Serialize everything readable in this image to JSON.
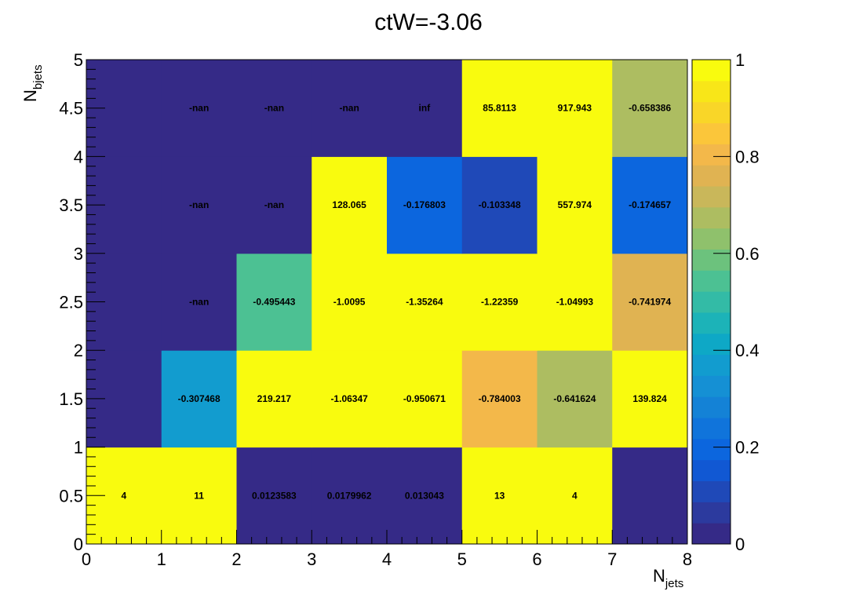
{
  "chart_data": {
    "type": "heatmap",
    "title": "ctW=-3.06",
    "xlabel": {
      "main": "N",
      "sub": "jets"
    },
    "ylabel": {
      "main": "N",
      "sub": "bjets"
    },
    "xlim": [
      0,
      8
    ],
    "ylim": [
      0,
      5
    ],
    "zlim": [
      0,
      1
    ],
    "x_ticks": [
      "0",
      "1",
      "2",
      "3",
      "4",
      "5",
      "6",
      "7",
      "8"
    ],
    "y_ticks": [
      "0",
      "0.5",
      "1",
      "1.5",
      "2",
      "2.5",
      "3",
      "3.5",
      "4",
      "4.5",
      "5"
    ],
    "z_ticks": [
      "0",
      "0.2",
      "0.4",
      "0.6",
      "0.8",
      "1"
    ],
    "palette": [
      "#352a87",
      "#2c3a9e",
      "#1f49b8",
      "#1158d3",
      "#0c66de",
      "#1074db",
      "#1482d6",
      "#1590d4",
      "#129ccf",
      "#0ea8c6",
      "#1cb3b8",
      "#33bba6",
      "#4cc193",
      "#6cc27d",
      "#8fc16c",
      "#adbd61",
      "#c9b75a",
      "#e0b352",
      "#f3b84a",
      "#fbc63a",
      "#f9d628",
      "#f8e618",
      "#f9fb0e"
    ],
    "grid": false,
    "show_colorbar": true,
    "rows": [
      {
        "y_low": 0,
        "fill": [
          1.0,
          1.0,
          0.02,
          0.02,
          0.02,
          1.0,
          1.0,
          0.02
        ],
        "labels": [
          "4",
          "11",
          "0.0123583",
          "0.0179962",
          "0.013043",
          "13",
          "4",
          ""
        ]
      },
      {
        "y_low": 1,
        "fill": [
          0.02,
          0.38,
          1.0,
          1.0,
          1.0,
          0.8,
          0.66,
          1.0
        ],
        "labels": [
          "",
          "-0.307468",
          "219.217",
          "-1.06347",
          "-0.950671",
          "-0.784003",
          "-0.641624",
          "139.824"
        ]
      },
      {
        "y_low": 2,
        "fill": [
          0.02,
          0.0,
          0.54,
          1.0,
          1.0,
          1.0,
          1.0,
          0.76
        ],
        "labels": [
          "",
          "-nan",
          "-0.495443",
          "-1.0095",
          "-1.35264",
          "-1.22359",
          "-1.04993",
          "-0.741974"
        ]
      },
      {
        "y_low": 3,
        "fill": [
          0.02,
          0.0,
          0.0,
          1.0,
          0.18,
          0.12,
          1.0,
          0.18
        ],
        "labels": [
          "",
          "-nan",
          "-nan",
          "128.065",
          "-0.176803",
          "-0.103348",
          "557.974",
          "-0.174657"
        ]
      },
      {
        "y_low": 4,
        "fill": [
          0.02,
          0.0,
          0.0,
          0.0,
          0.0,
          1.0,
          1.0,
          0.68
        ],
        "labels": [
          "",
          "-nan",
          "-nan",
          "-nan",
          "inf",
          "85.8113",
          "917.943",
          "-0.658386"
        ]
      }
    ]
  }
}
